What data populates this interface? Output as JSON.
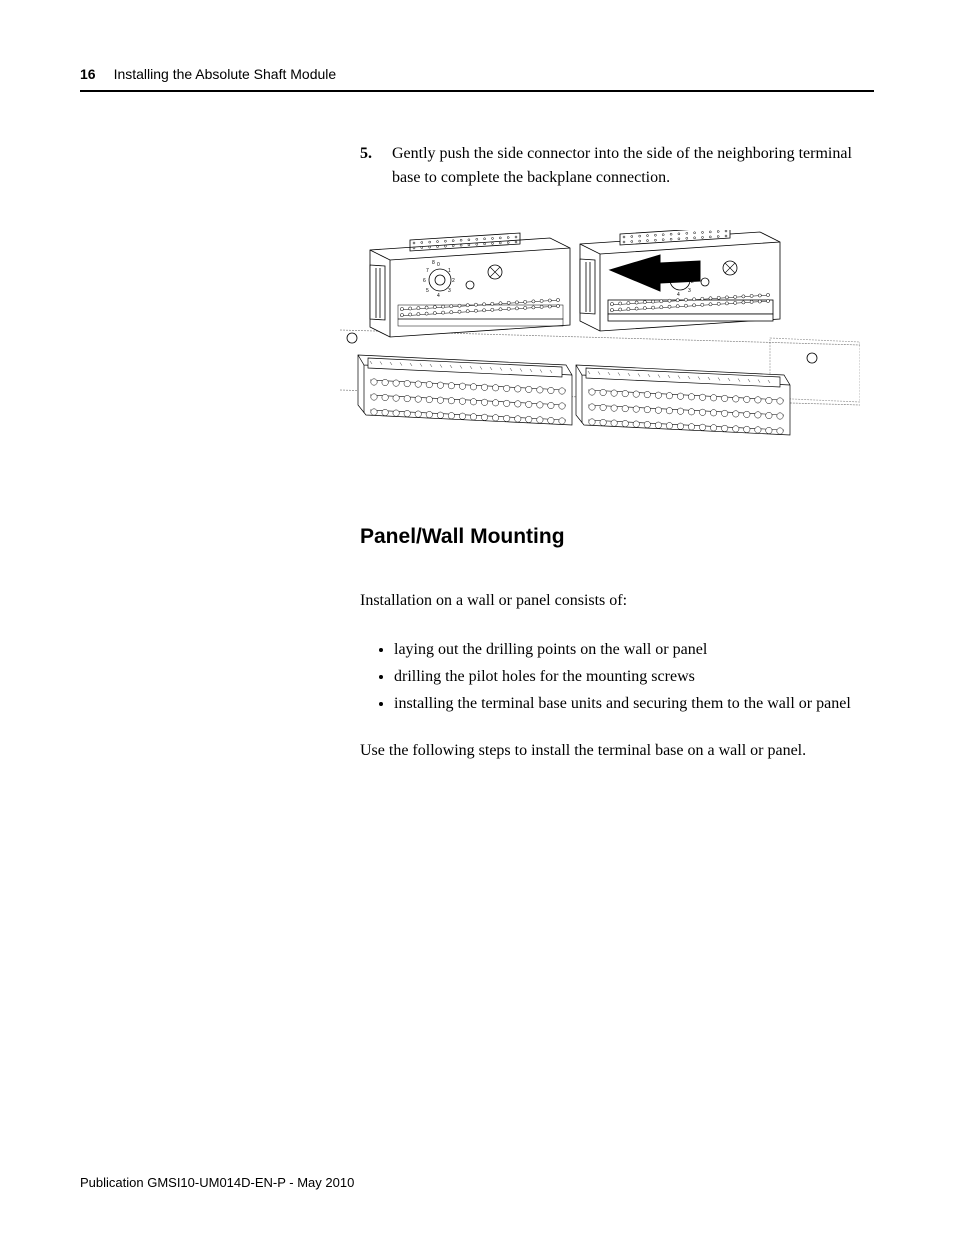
{
  "header": {
    "page_number": "16",
    "chapter_title": "Installing the Absolute Shaft Module"
  },
  "step": {
    "number": "5.",
    "text": "Gently push the side connector into the side of the neighboring terminal base to complete the backplane connection."
  },
  "diagram": {
    "type": "technical-illustration",
    "description": "Two terminal base modules on DIN rail with arrow showing side connector insertion",
    "stroke_color": "#000000",
    "background_color": "#ffffff",
    "arrow_color": "#000000"
  },
  "section": {
    "heading": "Panel/Wall Mounting",
    "intro": "Installation on a wall or panel consists of:",
    "bullets": [
      "laying out the drilling points on the wall or panel",
      "drilling the pilot holes for the mounting screws",
      "installing the terminal base units and securing them to the wall or panel"
    ],
    "outro": "Use the following steps to install the terminal base on a wall or panel."
  },
  "footer": {
    "text": "Publication GMSI10-UM014D-EN-P - May 2010"
  },
  "typography": {
    "body_font": "Georgia, serif",
    "heading_font": "Arial, sans-serif",
    "body_size_pt": 12,
    "heading_size_pt": 16,
    "header_size_pt": 10,
    "footer_size_pt": 10,
    "text_color": "#000000",
    "page_bg": "#ffffff"
  }
}
